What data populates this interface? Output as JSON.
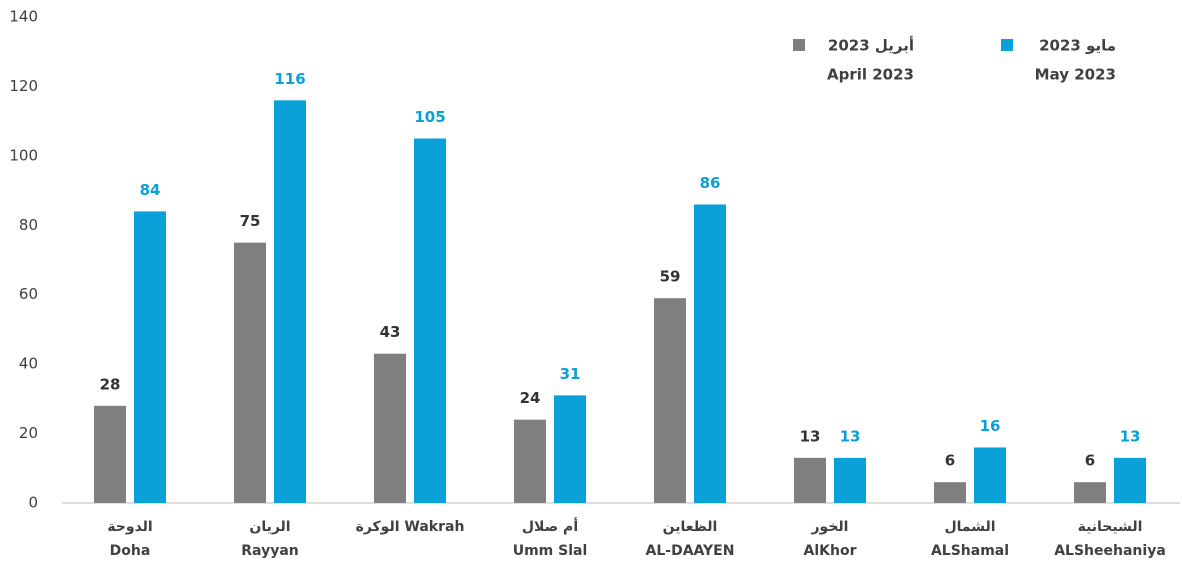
{
  "chart_data": {
    "type": "bar",
    "categories": [
      [
        "الدوحة",
        "Doha"
      ],
      [
        "الريان",
        "Rayyan"
      ],
      [
        "الوكرة Wakrah"
      ],
      [
        "أم صلال",
        "Umm Slal"
      ],
      [
        "الظعاين",
        "AL-DAAYEN"
      ],
      [
        "الخور",
        "AlKhor"
      ],
      [
        "الشمال",
        "ALShamal"
      ],
      [
        "الشيحانية",
        "ALSheehaniya"
      ]
    ],
    "series": [
      {
        "name": [
          "أبريل 2023",
          "April 2023"
        ],
        "color": "#7f7f80",
        "label_color": "#333333",
        "values": [
          28,
          75,
          43,
          24,
          59,
          13,
          6,
          6
        ]
      },
      {
        "name": [
          "مايو 2023",
          "May 2023"
        ],
        "color": "#0aa0d8",
        "label_color": "#0aa0d8",
        "values": [
          84,
          116,
          105,
          31,
          86,
          13,
          16,
          13
        ]
      }
    ],
    "ylim": [
      0,
      140
    ],
    "yticks": [
      0,
      20,
      40,
      60,
      80,
      100,
      120,
      140
    ],
    "grid": false
  }
}
